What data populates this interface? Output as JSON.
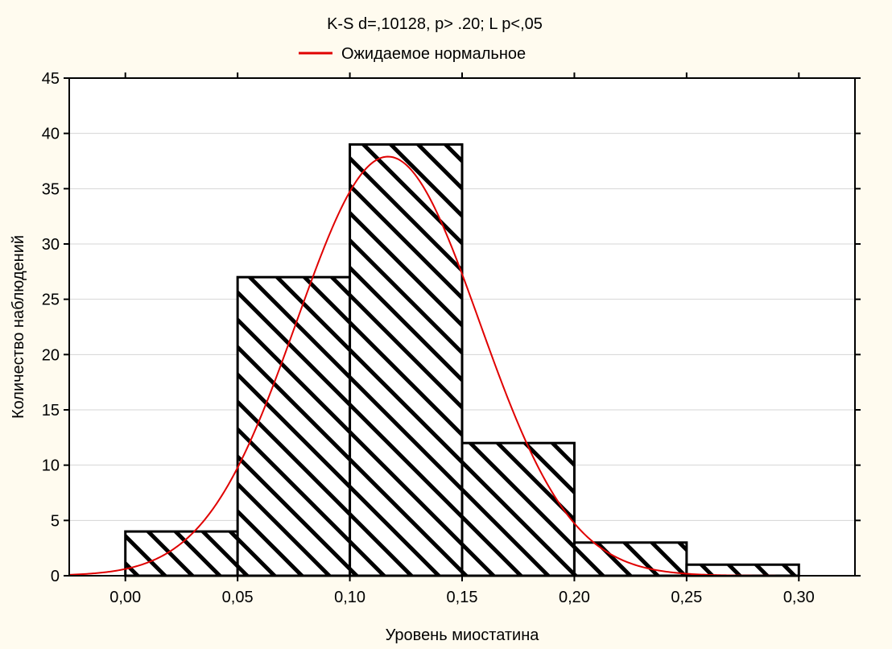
{
  "chart_data": {
    "type": "bar",
    "title": "K-S d=,10128, p> .20; L p<,05",
    "xlabel": "Уровень миостатина",
    "ylabel": "Количество наблюдений",
    "xlim": [
      -0.025,
      0.325
    ],
    "ylim": [
      0,
      45
    ],
    "x_ticks": [
      0.0,
      0.05,
      0.1,
      0.15,
      0.2,
      0.25,
      0.3
    ],
    "x_tick_labels": [
      "0,00",
      "0,05",
      "0,10",
      "0,15",
      "0,20",
      "0,25",
      "0,30"
    ],
    "y_ticks": [
      0,
      5,
      10,
      15,
      20,
      25,
      30,
      35,
      40,
      45
    ],
    "y_tick_labels": [
      "0",
      "5",
      "10",
      "15",
      "20",
      "25",
      "30",
      "35",
      "40",
      "45"
    ],
    "grid": true,
    "legend_position": "top",
    "bins": [
      {
        "x0": 0.0,
        "x1": 0.05,
        "value": 4
      },
      {
        "x0": 0.05,
        "x1": 0.1,
        "value": 27
      },
      {
        "x0": 0.1,
        "x1": 0.15,
        "value": 39
      },
      {
        "x0": 0.15,
        "x1": 0.2,
        "value": 12
      },
      {
        "x0": 0.2,
        "x1": 0.25,
        "value": 3
      },
      {
        "x0": 0.25,
        "x1": 0.3,
        "value": 1
      }
    ],
    "series": [
      {
        "name": "Ожидаемое нормальное",
        "type": "line",
        "color": "#e00000",
        "distribution": {
          "mean": 0.117,
          "sd": 0.0407,
          "peak": 37.9
        }
      }
    ],
    "colors": {
      "background": "#fffbef",
      "plot_background": "#ffffff",
      "bar_fill": "#ffffff",
      "bar_stroke": "#000000",
      "grid": "#d4d4d4",
      "curve": "#e00000"
    }
  }
}
